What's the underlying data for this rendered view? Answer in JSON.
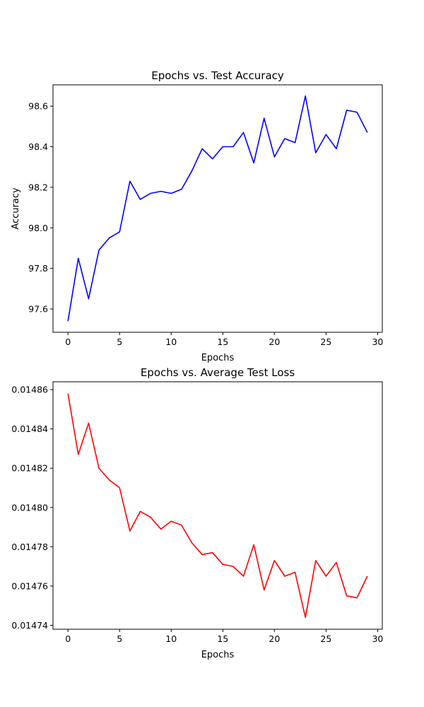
{
  "chart_data": [
    {
      "type": "line",
      "title": "Epochs vs. Test Accuracy",
      "xlabel": "Epochs",
      "ylabel": "Accuracy",
      "xlim": [
        -1.45,
        30.45
      ],
      "ylim": [
        97.485,
        98.705
      ],
      "xticks": [
        0,
        5,
        10,
        15,
        20,
        25,
        30
      ],
      "yticks": [
        97.6,
        97.8,
        98.0,
        98.2,
        98.4,
        98.6
      ],
      "ytick_labels": [
        "97.6",
        "97.8",
        "98.0",
        "98.2",
        "98.4",
        "98.6"
      ],
      "grid": false,
      "color": "#0000ff",
      "x": [
        0,
        1,
        2,
        3,
        4,
        5,
        6,
        7,
        8,
        9,
        10,
        11,
        12,
        13,
        14,
        15,
        16,
        17,
        18,
        19,
        20,
        21,
        22,
        23,
        24,
        25,
        26,
        27,
        28,
        29
      ],
      "y": [
        97.54,
        97.85,
        97.65,
        97.89,
        97.95,
        97.98,
        98.23,
        98.14,
        98.17,
        98.18,
        98.17,
        98.19,
        98.28,
        98.39,
        98.34,
        98.4,
        98.4,
        98.47,
        98.32,
        98.54,
        98.35,
        98.44,
        98.42,
        98.65,
        98.37,
        98.46,
        98.39,
        98.58,
        98.57,
        98.47
      ]
    },
    {
      "type": "line",
      "title": "Epochs vs. Average Test Loss",
      "xlabel": "Epochs",
      "ylabel": "",
      "xlim": [
        -1.45,
        30.45
      ],
      "ylim": [
        0.014738,
        0.014864
      ],
      "xticks": [
        0,
        5,
        10,
        15,
        20,
        25,
        30
      ],
      "yticks": [
        0.01474,
        0.01476,
        0.01478,
        0.0148,
        0.01482,
        0.01484,
        0.01486
      ],
      "ytick_labels": [
        "0.01474",
        "0.01476",
        "0.01478",
        "0.01480",
        "0.01482",
        "0.01484",
        "0.01486"
      ],
      "grid": false,
      "color": "#ff0000",
      "x": [
        0,
        1,
        2,
        3,
        4,
        5,
        6,
        7,
        8,
        9,
        10,
        11,
        12,
        13,
        14,
        15,
        16,
        17,
        18,
        19,
        20,
        21,
        22,
        23,
        24,
        25,
        26,
        27,
        28,
        29
      ],
      "y": [
        0.014858,
        0.014827,
        0.014843,
        0.01482,
        0.014814,
        0.01481,
        0.014788,
        0.014798,
        0.014795,
        0.014789,
        0.014793,
        0.014791,
        0.014782,
        0.014776,
        0.014777,
        0.014771,
        0.01477,
        0.014765,
        0.014781,
        0.014758,
        0.014773,
        0.014765,
        0.014767,
        0.014744,
        0.014773,
        0.014765,
        0.014772,
        0.014755,
        0.014754,
        0.014765
      ]
    }
  ]
}
